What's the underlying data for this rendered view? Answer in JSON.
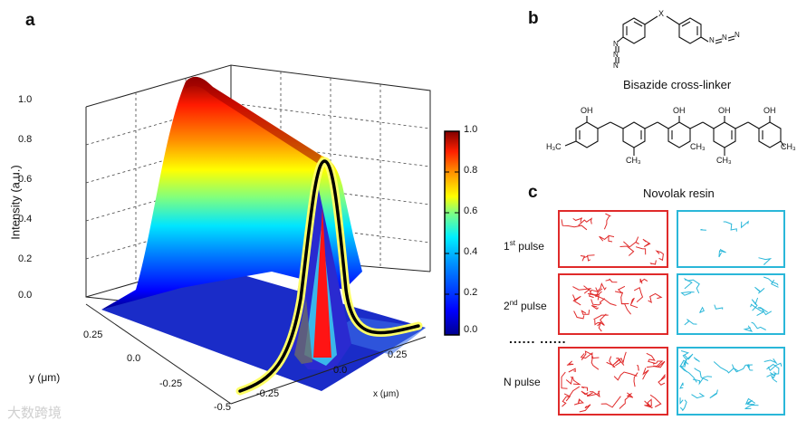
{
  "panels": {
    "a": "a",
    "b": "b",
    "c": "c"
  },
  "plot": {
    "z_ticks": [
      "1.0",
      "0.8",
      "0.6",
      "0.4",
      "0.2",
      "0.0"
    ],
    "z_label": "Intensity (a.u.)",
    "y_ticks": [
      "0.25",
      "0.0",
      "-0.25",
      "-0.5"
    ],
    "y_label": "y (μm)",
    "x_ticks": [
      "-0.25",
      "0.0",
      "0.25"
    ],
    "x_label": "x (μm)"
  },
  "colorbar": {
    "ticks": [
      "1.0",
      "0.8",
      "0.6",
      "0.4",
      "0.2",
      "0.0"
    ],
    "colors": [
      "#00008f",
      "#0000ff",
      "#0070ff",
      "#00e0ff",
      "#70ff8f",
      "#ffff00",
      "#ff9000",
      "#ff2000",
      "#800000"
    ]
  },
  "chemistry": {
    "crosslinker_caption": "Bisazide cross-linker",
    "resin_caption": "Novolak resin",
    "atoms": {
      "x": "X",
      "n": "N",
      "oh": "OH",
      "h3c": "H₃C",
      "ch3": "CH₃"
    }
  },
  "pulses": {
    "rows": [
      {
        "num": "1",
        "sup": "st",
        "word": "pulse"
      },
      {
        "num": "2",
        "sup": "nd",
        "word": "pulse"
      },
      {
        "num": "N",
        "sup": "",
        "word": "pulse"
      }
    ],
    "ellipsis": "......  ......",
    "red_color": "#e02a2a",
    "blue_color": "#2ab7d9"
  },
  "watermark": "大数跨境"
}
